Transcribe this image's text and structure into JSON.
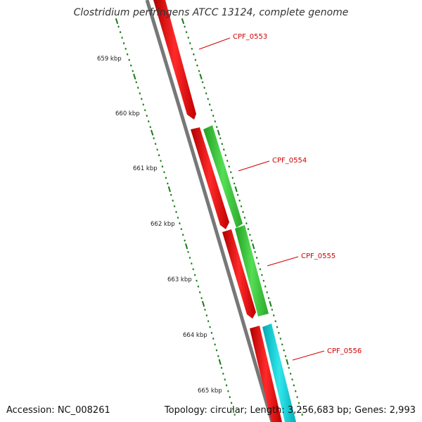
{
  "title": "Clostridium perfringens ATCC 13124, complete genome",
  "footer": {
    "accession": "Accession: NC_008261",
    "summary": "Topology: circular; Length: 3,256,683 bp; Genes: 2,993"
  },
  "kbp_labels": [
    "659 kbp",
    "660 kbp",
    "661 kbp",
    "662 kbp",
    "663 kbp",
    "664 kbp",
    "665 kbp"
  ],
  "genes": [
    {
      "label": "CPF_0553",
      "color": "#ff0000"
    },
    {
      "label": "CPF_0554",
      "color": "#33cc33"
    },
    {
      "label": "CPF_0555",
      "color": "#ff0000"
    },
    {
      "label": "CPF_0556",
      "color": "#00cccc"
    }
  ],
  "colors": {
    "backbone": "#777777",
    "ruler": "#1a7a1a",
    "forward_gene": "#ff0000",
    "label_line": "#d00000"
  }
}
